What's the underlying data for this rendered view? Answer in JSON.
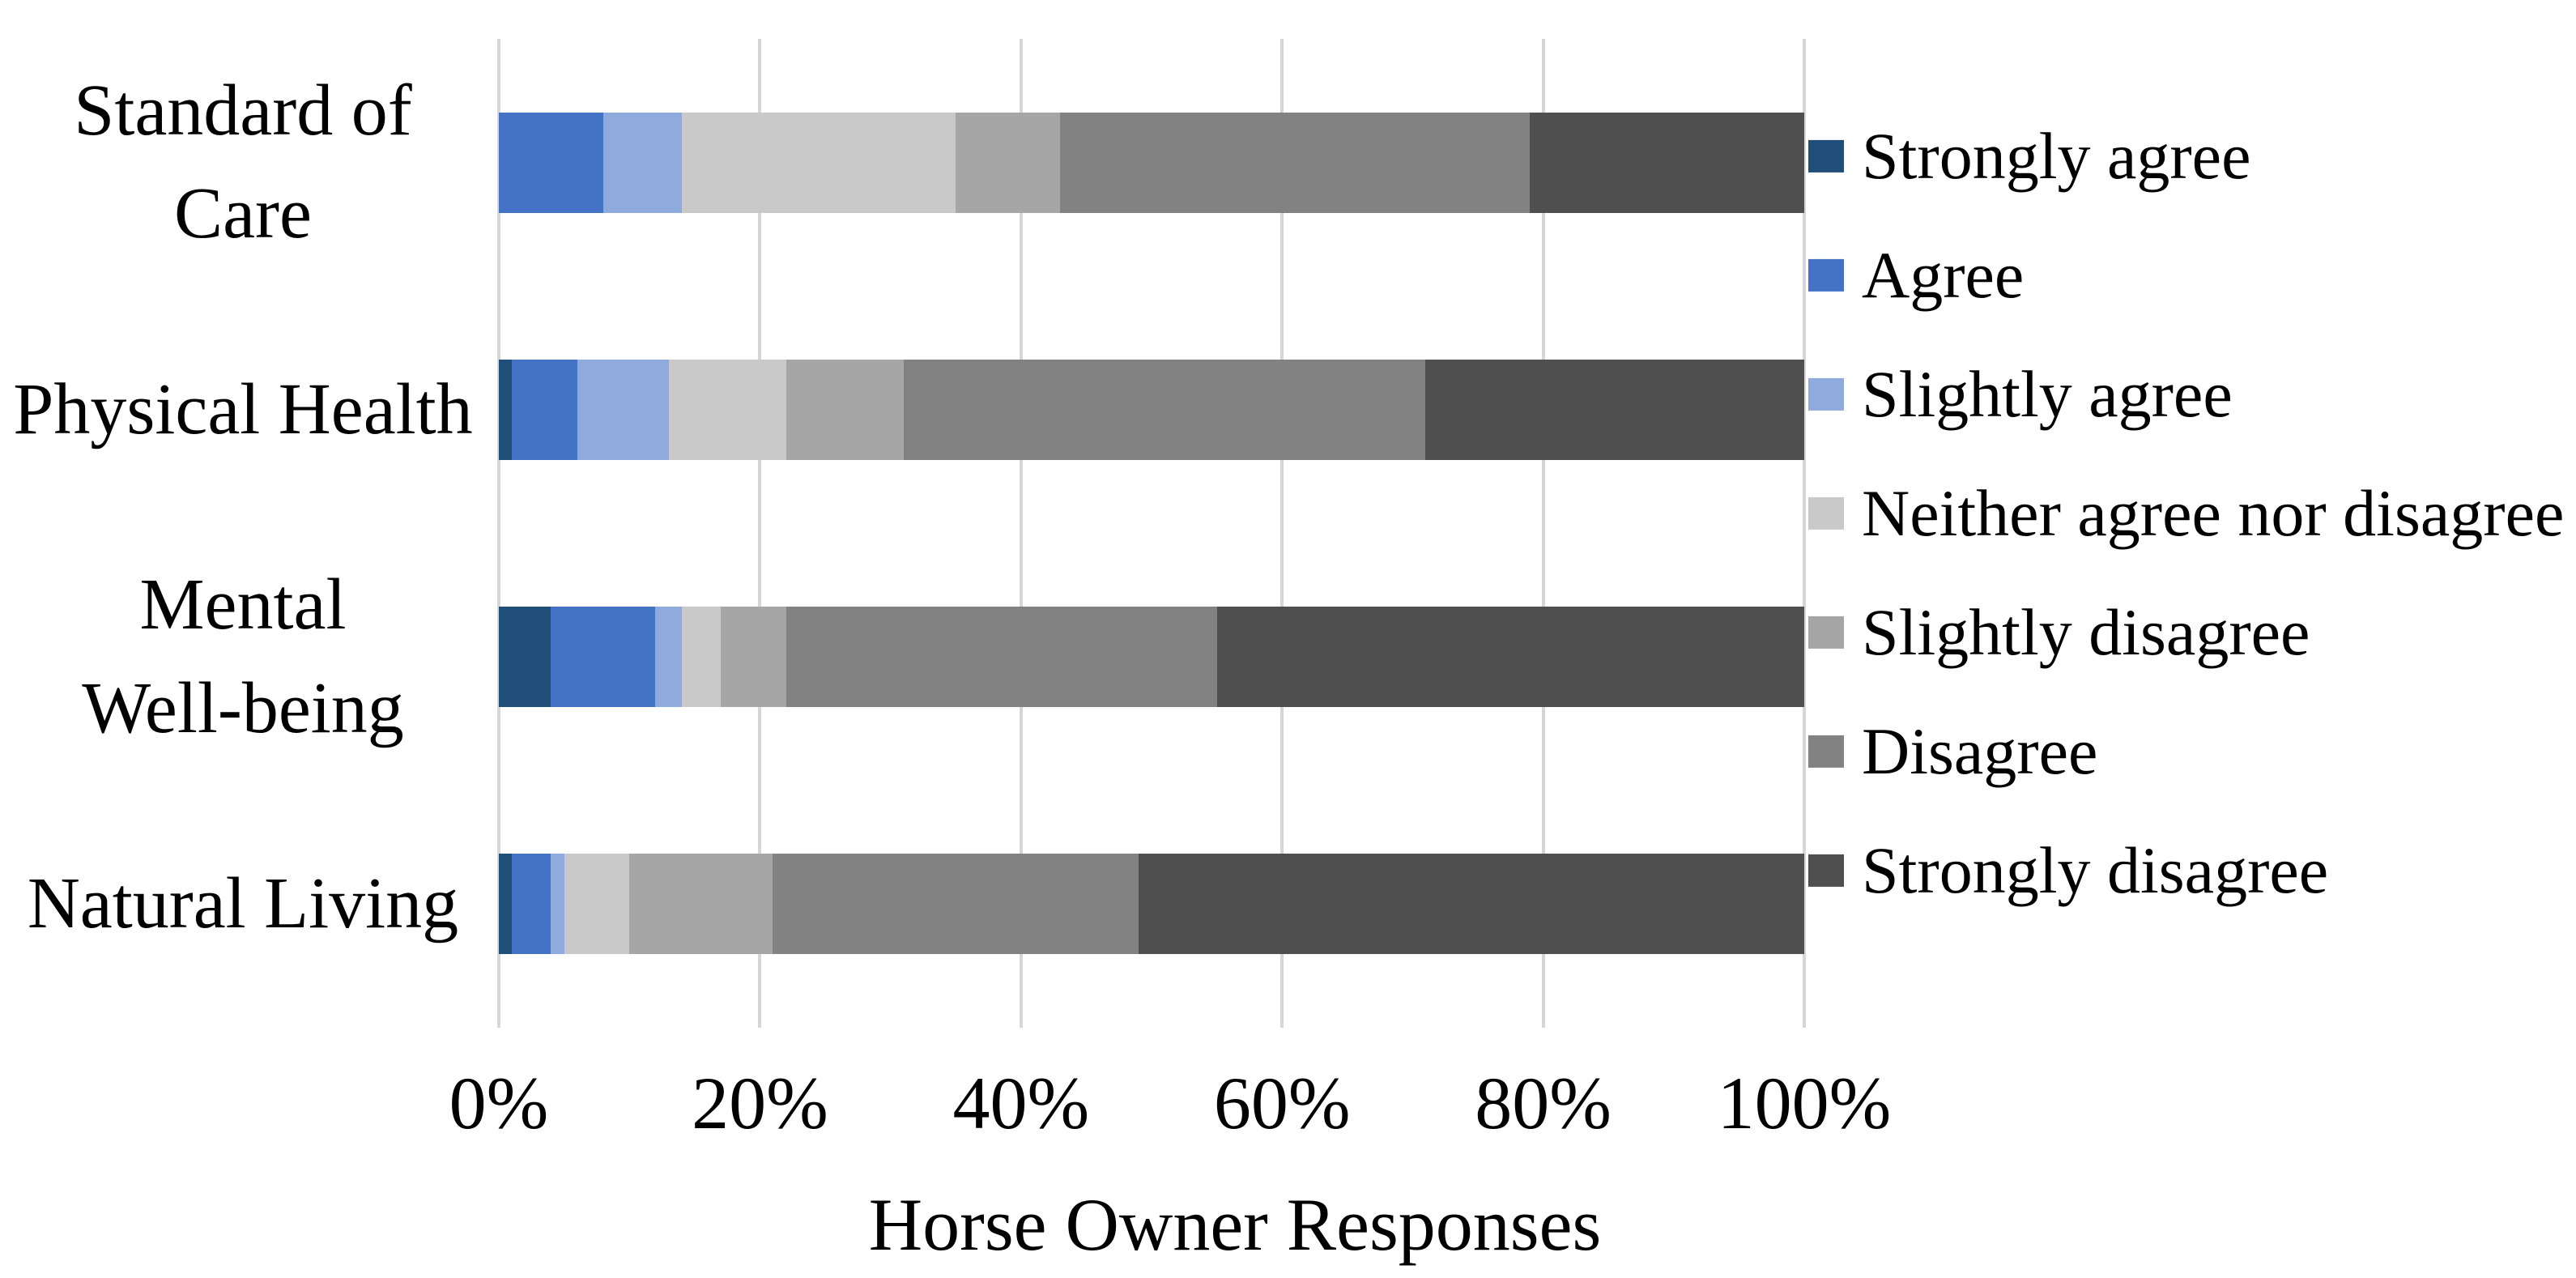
{
  "figure": {
    "kind": "stacked-horizontal-bar-chart",
    "background_color": "#FFFFFF",
    "gridline_color": "#D6D6D6",
    "text_color": "#000000"
  },
  "x_axis": {
    "title": "Horse Owner Responses",
    "tick_labels": [
      "0%",
      "20%",
      "40%",
      "60%",
      "80%",
      "100%"
    ],
    "tick_values": [
      0,
      20,
      40,
      60,
      80,
      100
    ]
  },
  "y_axis": {
    "category_label_lines": [
      [
        "Standard of",
        "Care"
      ],
      [
        "Physical Health"
      ],
      [
        "Mental",
        "Well-being"
      ],
      [
        "Natural Living"
      ]
    ]
  },
  "chart_data": {
    "type": "bar",
    "orientation": "horizontal",
    "stacked": true,
    "unit": "percent",
    "title": "",
    "xlabel": "Horse Owner Responses",
    "ylabel": "",
    "xlim": [
      0,
      100
    ],
    "x_tick_labels": [
      "0%",
      "20%",
      "40%",
      "60%",
      "80%",
      "100%"
    ],
    "grid": "vertical",
    "legend_position": "right",
    "categories": [
      "Standard of Care",
      "Physical Health",
      "Mental Well-being",
      "Natural Living"
    ],
    "series": [
      {
        "name": "Strongly agree",
        "color": "#1F4E79",
        "values": [
          0,
          1,
          4,
          1
        ]
      },
      {
        "name": "Agree",
        "color": "#4472C4",
        "values": [
          8,
          5,
          8,
          3
        ]
      },
      {
        "name": "Slightly agree",
        "color": "#8FAADC",
        "values": [
          6,
          7,
          2,
          1
        ]
      },
      {
        "name": "Neither agree nor disagree",
        "color": "#C9C9C9",
        "values": [
          21,
          9,
          3,
          5
        ]
      },
      {
        "name": "Slightly disagree",
        "color": "#A6A6A6",
        "values": [
          8,
          9,
          5,
          11
        ]
      },
      {
        "name": "Disagree",
        "color": "#828282",
        "values": [
          36,
          40,
          33,
          28
        ]
      },
      {
        "name": "Strongly disagree",
        "color": "#4F4F4F",
        "values": [
          21,
          29,
          45,
          51
        ]
      }
    ]
  }
}
